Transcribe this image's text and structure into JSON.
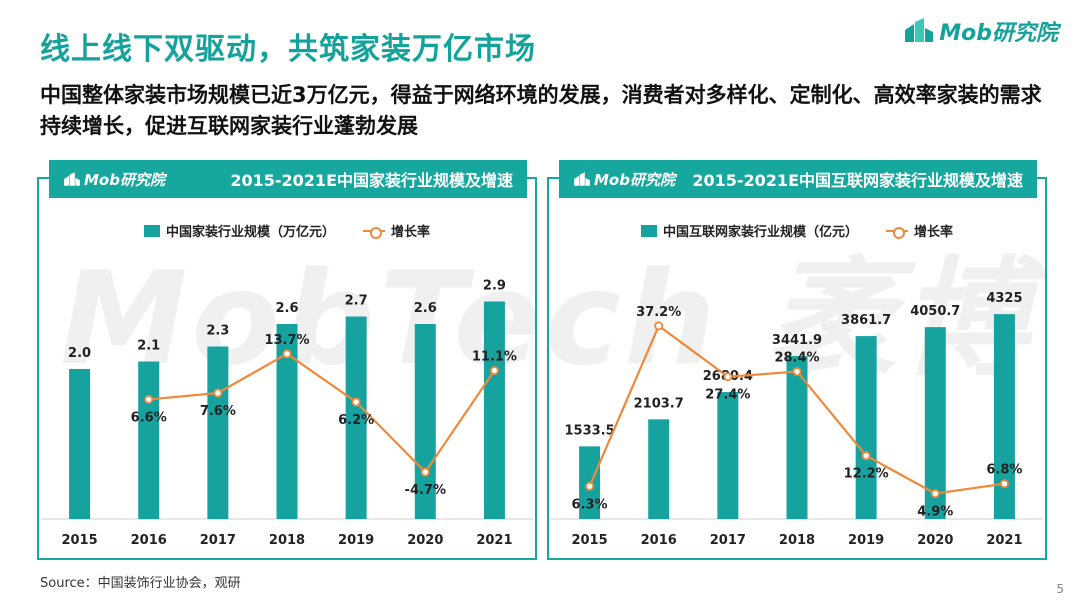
{
  "title": "线上线下双驱动，共筑家装万亿市场",
  "subtitle": "中国整体家装市场规模已近3万亿元，得益于网络环境的发展，消费者对多样化、定制化、高效率家装的需求持续增长，促进互联网家装行业蓬勃发展",
  "brand": {
    "name": "Mob研究院",
    "icon": "mob-logo-icon"
  },
  "watermark": "MobTech 袤博",
  "source": "Source：中国装饰行业协会，观研",
  "page_number": "5",
  "colors": {
    "accent": "#16a89f",
    "bar": "#16a3a0",
    "line": "#f0883a"
  },
  "panels": [
    {
      "header_logo": "Mob研究院",
      "header_title": "2015-2021E中国家装行业规模及增速"
    },
    {
      "header_logo": "Mob研究院",
      "header_title": "2015-2021E中国互联网家装行业规模及增速"
    }
  ],
  "chart_data": [
    {
      "type": "bar",
      "title": "2015-2021E中国家装行业规模及增速",
      "categories": [
        "2015",
        "2016",
        "2017",
        "2018",
        "2019",
        "2020",
        "2021"
      ],
      "series": [
        {
          "name": "中国家装行业规模（万亿元）",
          "type": "bar",
          "values": [
            2.0,
            2.1,
            2.3,
            2.6,
            2.7,
            2.6,
            2.9
          ],
          "labels": [
            "2.0",
            "2.1",
            "2.3",
            "2.6",
            "2.7",
            "2.6",
            "2.9"
          ]
        },
        {
          "name": "增长率",
          "type": "line",
          "values": [
            null,
            6.6,
            7.6,
            13.7,
            6.2,
            -4.7,
            11.1
          ],
          "labels": [
            "",
            "6.6%",
            "7.6%",
            "13.7%",
            "6.2%",
            "-4.7%",
            "11.1%"
          ]
        }
      ],
      "bar_ylim": [
        0,
        3.6
      ],
      "line_ylim": [
        -12,
        30
      ],
      "legend_position": "top-center",
      "grid": false
    },
    {
      "type": "bar",
      "title": "2015-2021E中国互联网家装行业规模及增速",
      "categories": [
        "2015",
        "2016",
        "2017",
        "2018",
        "2019",
        "2020",
        "2021"
      ],
      "series": [
        {
          "name": "中国互联网家装行业规模（亿元）",
          "type": "bar",
          "values": [
            1533.5,
            2103.7,
            2680.4,
            3441.9,
            3861.7,
            4050.7,
            4325
          ],
          "labels": [
            "1533.5",
            "2103.7",
            "2680.4",
            "3441.9",
            "3861.7",
            "4050.7",
            "4325"
          ]
        },
        {
          "name": "增长率",
          "type": "line",
          "values": [
            6.3,
            37.2,
            27.4,
            28.4,
            12.2,
            4.9,
            6.8
          ],
          "labels": [
            "6.3%",
            "37.2%",
            "27.4%",
            "28.4%",
            "12.2%",
            "4.9%",
            "6.8%"
          ]
        }
      ],
      "bar_ylim": [
        0,
        5700
      ],
      "line_ylim": [
        0,
        52
      ],
      "legend_position": "top-center",
      "grid": false
    }
  ]
}
